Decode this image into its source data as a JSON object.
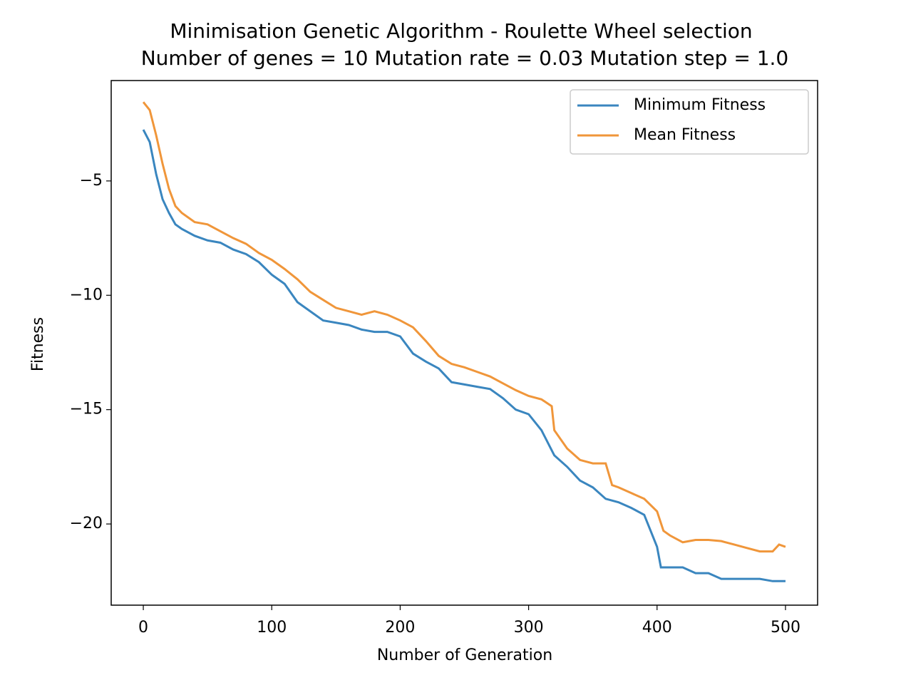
{
  "chart_data": {
    "type": "line",
    "title": "Minimisation Genetic Algorithm - Roulette Wheel selection",
    "subtitle": "Number of genes = 10 Mutation rate = 0.03 Mutation step = 1.0",
    "x_label": "Number of Generation",
    "y_label": "Fitness",
    "xlim": [
      -25,
      525
    ],
    "ylim": [
      -23.55,
      -0.61
    ],
    "xticks": [
      0,
      100,
      200,
      300,
      400,
      500
    ],
    "yticks": [
      {
        "value": -5,
        "label": "−5"
      },
      {
        "value": -10,
        "label": "−10"
      },
      {
        "value": -15,
        "label": "−15"
      },
      {
        "value": -20,
        "label": "−20"
      }
    ],
    "legend": "upper right",
    "series": [
      {
        "name": "Minimum Fitness",
        "color": "#3a86bf",
        "x": [
          0,
          5,
          10,
          15,
          20,
          25,
          30,
          40,
          50,
          60,
          70,
          80,
          90,
          100,
          110,
          120,
          130,
          140,
          150,
          160,
          170,
          180,
          190,
          200,
          210,
          220,
          230,
          240,
          250,
          260,
          270,
          280,
          290,
          300,
          310,
          320,
          330,
          340,
          350,
          360,
          370,
          380,
          390,
          395,
          400,
          403,
          420,
          430,
          440,
          450,
          460,
          470,
          480,
          490,
          500
        ],
        "values": [
          -2.76,
          -3.3,
          -4.7,
          -5.8,
          -6.4,
          -6.9,
          -7.1,
          -7.4,
          -7.6,
          -7.7,
          -8.0,
          -8.2,
          -8.55,
          -9.1,
          -9.5,
          -10.3,
          -10.7,
          -11.1,
          -11.2,
          -11.3,
          -11.5,
          -11.6,
          -11.6,
          -11.8,
          -12.55,
          -12.9,
          -13.2,
          -13.8,
          -13.9,
          -14.0,
          -14.1,
          -14.5,
          -15.0,
          -15.2,
          -15.9,
          -17.0,
          -17.5,
          -18.1,
          -18.4,
          -18.9,
          -19.05,
          -19.3,
          -19.6,
          -20.3,
          -21.0,
          -21.9,
          -21.9,
          -22.15,
          -22.15,
          -22.4,
          -22.4,
          -22.4,
          -22.4,
          -22.5,
          -22.5
        ]
      },
      {
        "name": "Mean Fitness",
        "color": "#f0963a",
        "x": [
          0,
          5,
          10,
          15,
          20,
          25,
          30,
          40,
          50,
          60,
          70,
          80,
          90,
          100,
          110,
          120,
          130,
          140,
          150,
          160,
          170,
          180,
          190,
          200,
          210,
          220,
          230,
          240,
          250,
          260,
          270,
          280,
          290,
          300,
          310,
          318,
          320,
          330,
          340,
          350,
          360,
          365,
          370,
          380,
          390,
          400,
          405,
          410,
          420,
          430,
          440,
          450,
          460,
          470,
          480,
          490,
          495,
          500
        ],
        "values": [
          -1.55,
          -1.9,
          -3.0,
          -4.25,
          -5.35,
          -6.1,
          -6.4,
          -6.8,
          -6.9,
          -7.2,
          -7.5,
          -7.75,
          -8.15,
          -8.45,
          -8.85,
          -9.3,
          -9.85,
          -10.2,
          -10.55,
          -10.7,
          -10.85,
          -10.7,
          -10.85,
          -11.1,
          -11.4,
          -12.0,
          -12.65,
          -13.0,
          -13.15,
          -13.35,
          -13.55,
          -13.85,
          -14.15,
          -14.4,
          -14.55,
          -14.85,
          -15.9,
          -16.7,
          -17.2,
          -17.35,
          -17.35,
          -18.3,
          -18.4,
          -18.65,
          -18.9,
          -19.45,
          -20.3,
          -20.5,
          -20.8,
          -20.7,
          -20.7,
          -20.75,
          -20.9,
          -21.05,
          -21.2,
          -21.2,
          -20.9,
          -21.0
        ]
      }
    ]
  }
}
